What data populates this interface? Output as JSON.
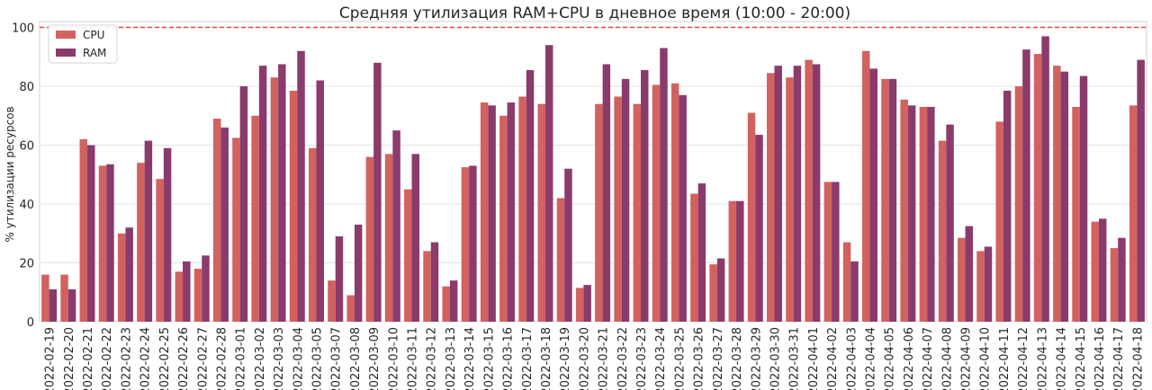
{
  "chart_data": {
    "type": "bar",
    "title": "Средняя утилизация RAM+CPU в дневное время (10:00 - 20:00)",
    "xlabel": "",
    "ylabel": "% утилизации ресурсов",
    "ylim": [
      0,
      102
    ],
    "yticks": [
      "0",
      "20",
      "40",
      "60",
      "80",
      "100"
    ],
    "grid": true,
    "legend_position": "top-left",
    "threshold_line": 100,
    "threshold_color": "#e8453c",
    "categories": [
      "2022-02-19",
      "2022-02-20",
      "2022-02-21",
      "2022-02-22",
      "2022-02-23",
      "2022-02-24",
      "2022-02-25",
      "2022-02-26",
      "2022-02-27",
      "2022-02-28",
      "2022-03-01",
      "2022-03-02",
      "2022-03-03",
      "2022-03-04",
      "2022-03-05",
      "2022-03-07",
      "2022-03-08",
      "2022-03-09",
      "2022-03-10",
      "2022-03-11",
      "2022-03-12",
      "2022-03-13",
      "2022-03-14",
      "2022-03-15",
      "2022-03-16",
      "2022-03-17",
      "2022-03-18",
      "2022-03-19",
      "2022-03-20",
      "2022-03-21",
      "2022-03-22",
      "2022-03-23",
      "2022-03-24",
      "2022-03-25",
      "2022-03-26",
      "2022-03-27",
      "2022-03-28",
      "2022-03-29",
      "2022-03-30",
      "2022-03-31",
      "2022-04-01",
      "2022-04-02",
      "2022-04-03",
      "2022-04-04",
      "2022-04-05",
      "2022-04-06",
      "2022-04-07",
      "2022-04-08",
      "2022-04-09",
      "2022-04-10",
      "2022-04-11",
      "2022-04-12",
      "2022-04-13",
      "2022-04-14",
      "2022-04-15",
      "2022-04-16",
      "2022-04-17",
      "2022-04-18"
    ],
    "series": [
      {
        "name": "CPU",
        "color": "#d2625f",
        "values": [
          16,
          16,
          62,
          53,
          30,
          54,
          48.5,
          17,
          18,
          69,
          62.5,
          70,
          83,
          78.5,
          59,
          14,
          9,
          56,
          57,
          45,
          24,
          12,
          52.5,
          74.5,
          70,
          76.5,
          74,
          42,
          11.5,
          74,
          76.5,
          74,
          80.5,
          81,
          43.5,
          19.5,
          41,
          71,
          84.5,
          83,
          89,
          47.5,
          27,
          92,
          82.5,
          75.5,
          73,
          61.5,
          28.5,
          24,
          68,
          80,
          91,
          87,
          73,
          34,
          25,
          73.5
        ]
      },
      {
        "name": "RAM",
        "color": "#8a3b6c",
        "values": [
          11,
          11,
          60,
          53.5,
          32,
          61.5,
          59,
          20.5,
          22.5,
          66,
          80,
          87,
          87.5,
          92,
          82,
          29,
          33,
          88,
          65,
          57,
          27,
          14,
          53,
          73.5,
          74.5,
          85.5,
          94,
          52,
          12.5,
          87.5,
          82.5,
          85.5,
          93,
          77,
          47,
          21.5,
          41,
          63.5,
          87,
          87,
          87.5,
          47.5,
          20.5,
          86,
          82.5,
          73.5,
          73,
          67,
          32.5,
          25.5,
          78.5,
          92.5,
          97,
          85,
          83.5,
          35,
          28.5,
          89
        ]
      }
    ]
  }
}
